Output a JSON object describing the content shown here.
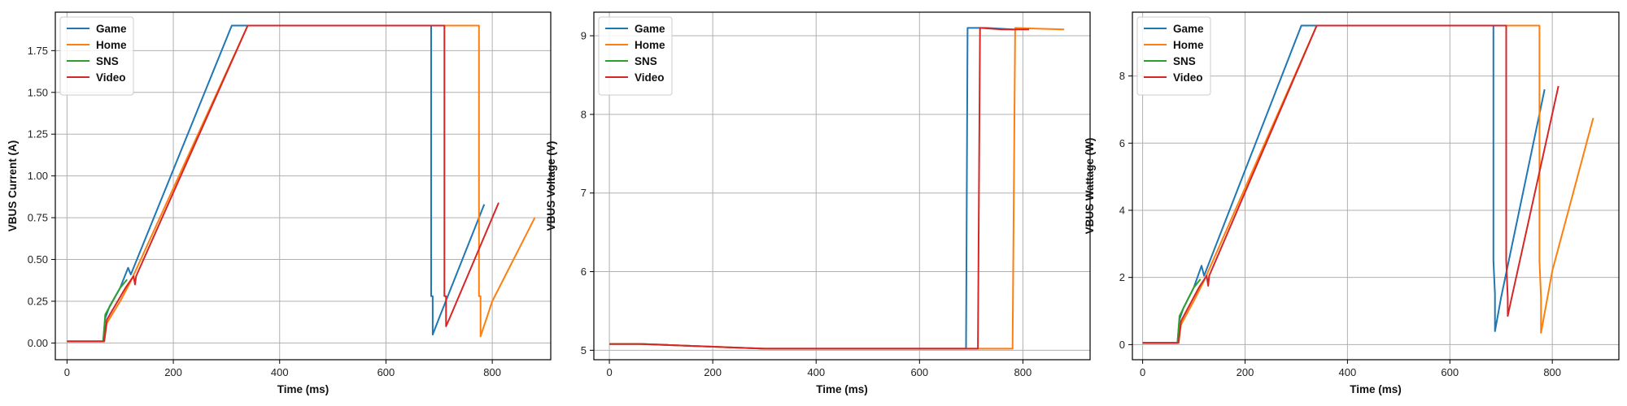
{
  "chart_data": [
    {
      "type": "line",
      "xlabel": "Time (ms)",
      "ylabel": "VBUS Current (A)",
      "xlim": [
        -22,
        910
      ],
      "ylim": [
        -0.1,
        1.98
      ],
      "xticks": [
        0,
        200,
        400,
        600,
        800
      ],
      "yticks": [
        0.0,
        0.25,
        0.5,
        0.75,
        1.0,
        1.25,
        1.5,
        1.75
      ],
      "ytick_labels": [
        "0.00",
        "0.25",
        "0.50",
        "0.75",
        "1.00",
        "1.25",
        "1.50",
        "1.75"
      ],
      "grid": true,
      "legend": "top-left",
      "series": [
        {
          "name": "Game",
          "color": "#1f77b4",
          "x": [
            0,
            68,
            72,
            80,
            100,
            115,
            120,
            310,
            685,
            685,
            688,
            688,
            700,
            785
          ],
          "y": [
            0.01,
            0.01,
            0.15,
            0.22,
            0.33,
            0.45,
            0.41,
            1.9,
            1.9,
            0.28,
            0.28,
            0.05,
            0.15,
            0.83
          ]
        },
        {
          "name": "Home",
          "color": "#ff7f0e",
          "x": [
            0,
            70,
            75,
            100,
            120,
            340,
            775,
            775,
            778,
            778,
            800,
            880
          ],
          "y": [
            0.01,
            0.01,
            0.12,
            0.25,
            0.37,
            1.9,
            1.9,
            0.28,
            0.28,
            0.04,
            0.25,
            0.75
          ]
        },
        {
          "name": "SNS",
          "color": "#2ca02c",
          "x": [
            0,
            68,
            72,
            100,
            113
          ],
          "y": [
            0.01,
            0.01,
            0.17,
            0.33,
            0.38
          ]
        },
        {
          "name": "Video",
          "color": "#d62728",
          "x": [
            0,
            70,
            75,
            110,
            125,
            128,
            130,
            340,
            710,
            710,
            713,
            713,
            720,
            812
          ],
          "y": [
            0.01,
            0.01,
            0.14,
            0.33,
            0.4,
            0.35,
            0.4,
            1.9,
            1.9,
            0.28,
            0.28,
            0.1,
            0.15,
            0.84
          ]
        }
      ]
    },
    {
      "type": "line",
      "xlabel": "Time (ms)",
      "ylabel": "VBUS Voltage (V)",
      "xlim": [
        -30,
        930
      ],
      "ylim": [
        4.88,
        9.3
      ],
      "xticks": [
        0,
        200,
        400,
        600,
        800
      ],
      "yticks": [
        5,
        6,
        7,
        8,
        9
      ],
      "ytick_labels": [
        "5",
        "6",
        "7",
        "8",
        "9"
      ],
      "grid": true,
      "legend": "top-left",
      "series": [
        {
          "name": "Game",
          "color": "#1f77b4",
          "x": [
            0,
            60,
            300,
            680,
            690,
            693,
            730,
            782
          ],
          "y": [
            5.08,
            5.08,
            5.02,
            5.02,
            5.02,
            9.1,
            9.1,
            9.08
          ]
        },
        {
          "name": "Home",
          "color": "#ff7f0e",
          "x": [
            0,
            60,
            300,
            770,
            780,
            785,
            880
          ],
          "y": [
            5.08,
            5.08,
            5.02,
            5.02,
            5.02,
            9.1,
            9.08
          ]
        },
        {
          "name": "SNS",
          "color": "#2ca02c",
          "x": [
            0,
            60,
            113
          ],
          "y": [
            5.08,
            5.08,
            5.07
          ]
        },
        {
          "name": "Video",
          "color": "#d62728",
          "x": [
            0,
            60,
            300,
            710,
            713,
            717,
            760,
            812
          ],
          "y": [
            5.08,
            5.08,
            5.02,
            5.02,
            5.02,
            9.1,
            9.08,
            9.08
          ]
        }
      ]
    },
    {
      "type": "line",
      "xlabel": "Time (ms)",
      "ylabel": "VBUS Wattage (W)",
      "xlim": [
        -20,
        930
      ],
      "ylim": [
        -0.45,
        9.9
      ],
      "xticks": [
        0,
        200,
        400,
        600,
        800
      ],
      "yticks": [
        0,
        2,
        4,
        6,
        8
      ],
      "ytick_labels": [
        "0",
        "2",
        "4",
        "6",
        "8"
      ],
      "grid": true,
      "legend": "top-left",
      "series": [
        {
          "name": "Game",
          "color": "#1f77b4",
          "x": [
            0,
            68,
            72,
            80,
            100,
            115,
            120,
            310,
            685,
            685,
            688,
            688,
            700,
            785
          ],
          "y": [
            0.05,
            0.05,
            0.75,
            1.1,
            1.7,
            2.35,
            2.05,
            9.5,
            9.5,
            2.5,
            1.5,
            0.4,
            1.4,
            7.6
          ]
        },
        {
          "name": "Home",
          "color": "#ff7f0e",
          "x": [
            0,
            70,
            75,
            100,
            120,
            340,
            775,
            775,
            778,
            778,
            800,
            880
          ],
          "y": [
            0.05,
            0.05,
            0.6,
            1.3,
            1.9,
            9.5,
            9.5,
            2.5,
            1.4,
            0.35,
            2.2,
            6.75
          ]
        },
        {
          "name": "SNS",
          "color": "#2ca02c",
          "x": [
            0,
            68,
            72,
            100,
            113
          ],
          "y": [
            0.05,
            0.05,
            0.85,
            1.7,
            1.95
          ]
        },
        {
          "name": "Video",
          "color": "#d62728",
          "x": [
            0,
            70,
            75,
            110,
            125,
            128,
            130,
            340,
            710,
            710,
            713,
            713,
            720,
            812
          ],
          "y": [
            0.05,
            0.05,
            0.7,
            1.7,
            2.05,
            1.75,
            2.05,
            9.5,
            9.5,
            2.5,
            1.4,
            0.85,
            1.35,
            7.7
          ]
        }
      ]
    }
  ]
}
